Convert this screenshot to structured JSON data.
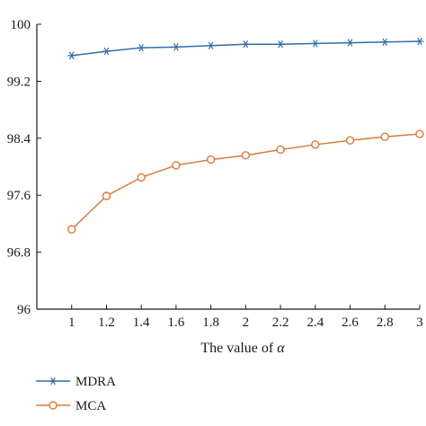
{
  "chart_data": {
    "type": "line",
    "xlabel_prefix": "The value of ",
    "xlabel_symbol": "α",
    "ylabel": "",
    "x": [
      1,
      1.2,
      1.4,
      1.6,
      1.8,
      2,
      2.2,
      2.4,
      2.6,
      2.8,
      3
    ],
    "x_tick_labels": [
      "1",
      "1.2",
      "1.4",
      "1.6",
      "1.8",
      "2",
      "2.2",
      "2.4",
      "2.6",
      "2.8",
      "3"
    ],
    "y_ticks": [
      96,
      96.8,
      97.6,
      98.4,
      99.2,
      100
    ],
    "y_tick_labels": [
      "96",
      "96.8",
      "97.6",
      "98.4",
      "99.2",
      "100"
    ],
    "xlim": [
      0.8,
      3.0
    ],
    "ylim": [
      96,
      100
    ],
    "grid": false,
    "legend_position": "bottom-left, below plot",
    "series": [
      {
        "name": "MDRA",
        "marker": "asterisk",
        "color": "#2f6fa8",
        "values": [
          99.56,
          99.62,
          99.67,
          99.68,
          99.7,
          99.72,
          99.72,
          99.73,
          99.74,
          99.75,
          99.76
        ]
      },
      {
        "name": "MCA",
        "marker": "circle",
        "color": "#d97a3c",
        "values": [
          97.12,
          97.59,
          97.85,
          98.02,
          98.1,
          98.16,
          98.24,
          98.31,
          98.37,
          98.42,
          98.46
        ]
      }
    ]
  }
}
